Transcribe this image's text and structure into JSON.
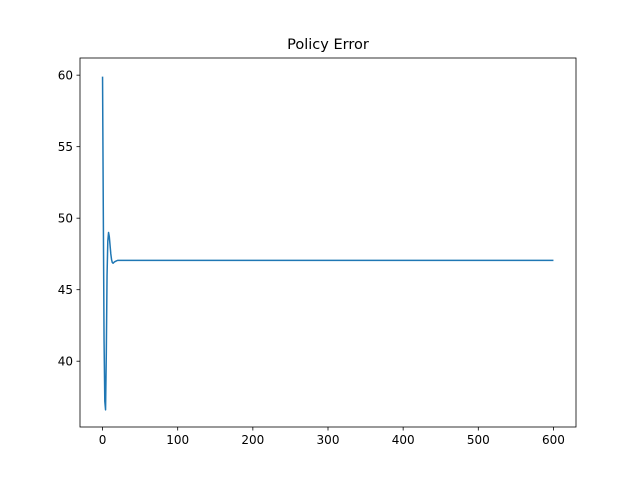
{
  "chart_data": {
    "type": "line",
    "title": "Policy Error",
    "xlabel": "",
    "ylabel": "",
    "xlim": [
      -30,
      630
    ],
    "ylim": [
      35.4,
      61.2
    ],
    "xticks": [
      0,
      100,
      200,
      300,
      400,
      500,
      600
    ],
    "yticks": [
      40,
      45,
      50,
      55,
      60
    ],
    "grid": false,
    "legend": "none",
    "series": [
      {
        "color": "#1f77b4",
        "x": [
          0,
          1,
          2,
          3,
          4,
          5,
          6,
          7,
          8,
          9,
          10,
          11,
          12,
          13,
          14,
          15,
          16,
          18,
          20,
          22,
          25,
          30,
          40,
          60,
          100,
          200,
          300,
          400,
          500,
          600
        ],
        "y": [
          59.9,
          50.5,
          41.5,
          37.2,
          36.6,
          40.5,
          46.0,
          48.4,
          49.0,
          48.7,
          48.1,
          47.5,
          47.1,
          46.9,
          46.85,
          46.9,
          46.95,
          47.0,
          47.05,
          47.05,
          47.05,
          47.05,
          47.05,
          47.05,
          47.05,
          47.05,
          47.05,
          47.05,
          47.05,
          47.05
        ]
      }
    ]
  }
}
